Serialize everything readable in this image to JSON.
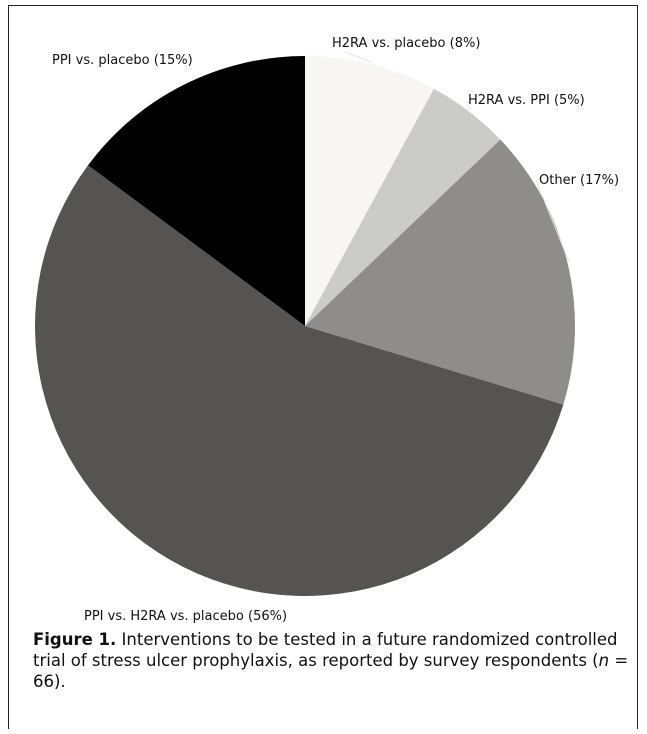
{
  "chart_data": {
    "type": "pie",
    "slices": [
      {
        "label": "H2RA vs. placebo (8%)",
        "value": 8,
        "color": "#f7f6f3"
      },
      {
        "label": "H2RA vs. PPI (5%)",
        "value": 5,
        "color": "#cbcbca"
      },
      {
        "label": "Other (17%)",
        "value": 17,
        "color": "#8e8d8b"
      },
      {
        "label": "PPI vs. H2RA vs. placebo (56%)",
        "value": 56,
        "color": "#555453"
      },
      {
        "label": "PPI vs. placebo (15%)",
        "value": 15,
        "color": "#000000"
      }
    ]
  },
  "caption": {
    "figure_label": "Figure 1.",
    "text_before_n": " Interventions to be tested in a future randomized controlled trial of stress ulcer prophylaxis, as reported by survey respondents (",
    "n_symbol": "n",
    "text_after_n": " = 66)."
  }
}
